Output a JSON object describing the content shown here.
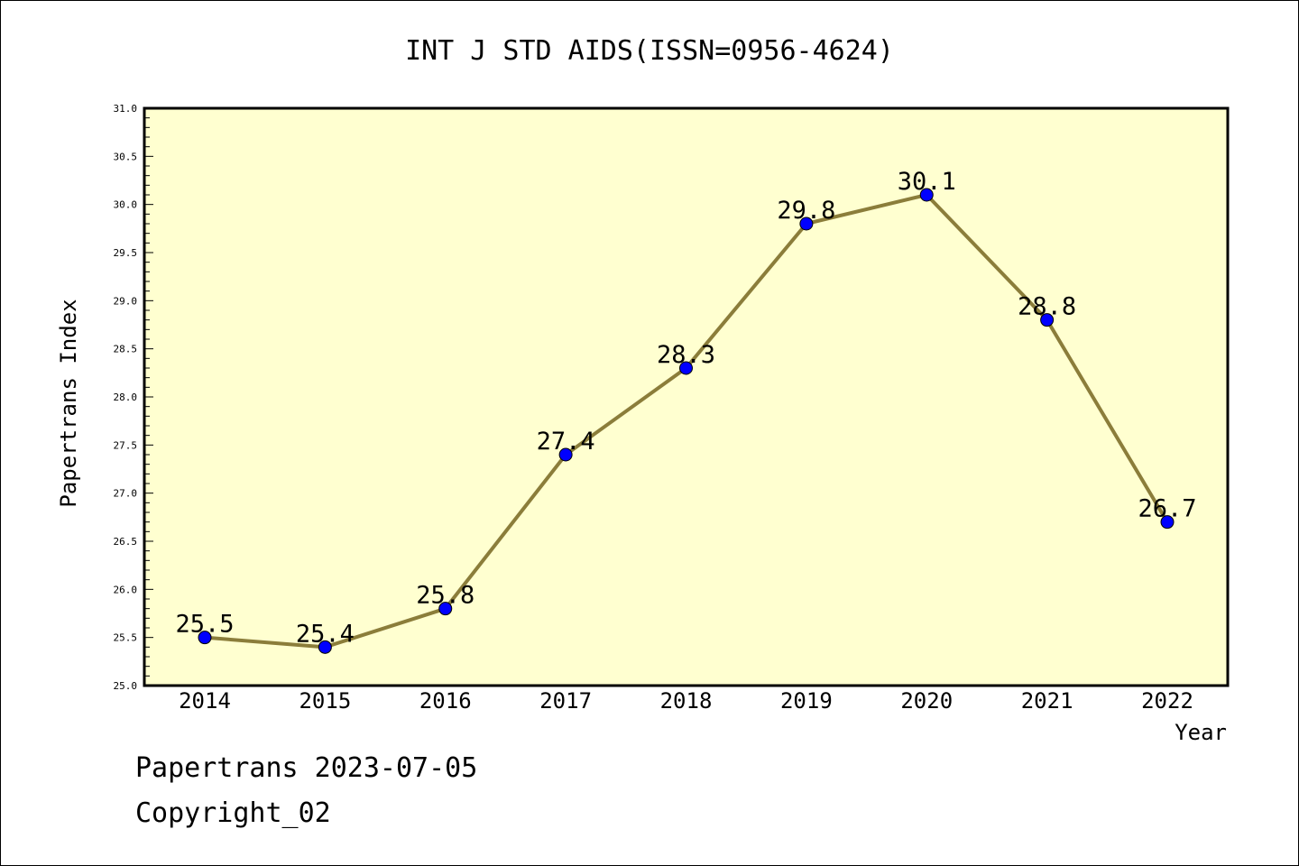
{
  "chart_data": {
    "type": "line",
    "title": "INT J STD AIDS(ISSN=0956-4624)",
    "xlabel": "Year",
    "ylabel": "Papertrans Index",
    "categories": [
      "2014",
      "2015",
      "2016",
      "2017",
      "2018",
      "2019",
      "2020",
      "2021",
      "2022"
    ],
    "series": [
      {
        "values": [
          25.5,
          25.4,
          25.8,
          27.4,
          28.3,
          29.8,
          30.1,
          28.8,
          26.7
        ]
      }
    ],
    "data_labels": [
      "25.5",
      "25.4",
      "25.8",
      "27.4",
      "28.3",
      "29.8",
      "30.1",
      "28.8",
      "26.7"
    ],
    "ylim": [
      25.0,
      31.0
    ],
    "yticks": [
      "25.0",
      "25.5",
      "26.0",
      "26.5",
      "27.0",
      "27.5",
      "28.0",
      "28.5",
      "29.0",
      "29.5",
      "30.0",
      "30.5",
      "31.0"
    ],
    "grid": false,
    "colors": {
      "plot_background": "#ffffd0",
      "line": "#8b7d3a",
      "marker": "#0000ff"
    }
  },
  "footer": {
    "line1": "Papertrans 2023-07-05",
    "line2": "Copyright_02"
  }
}
